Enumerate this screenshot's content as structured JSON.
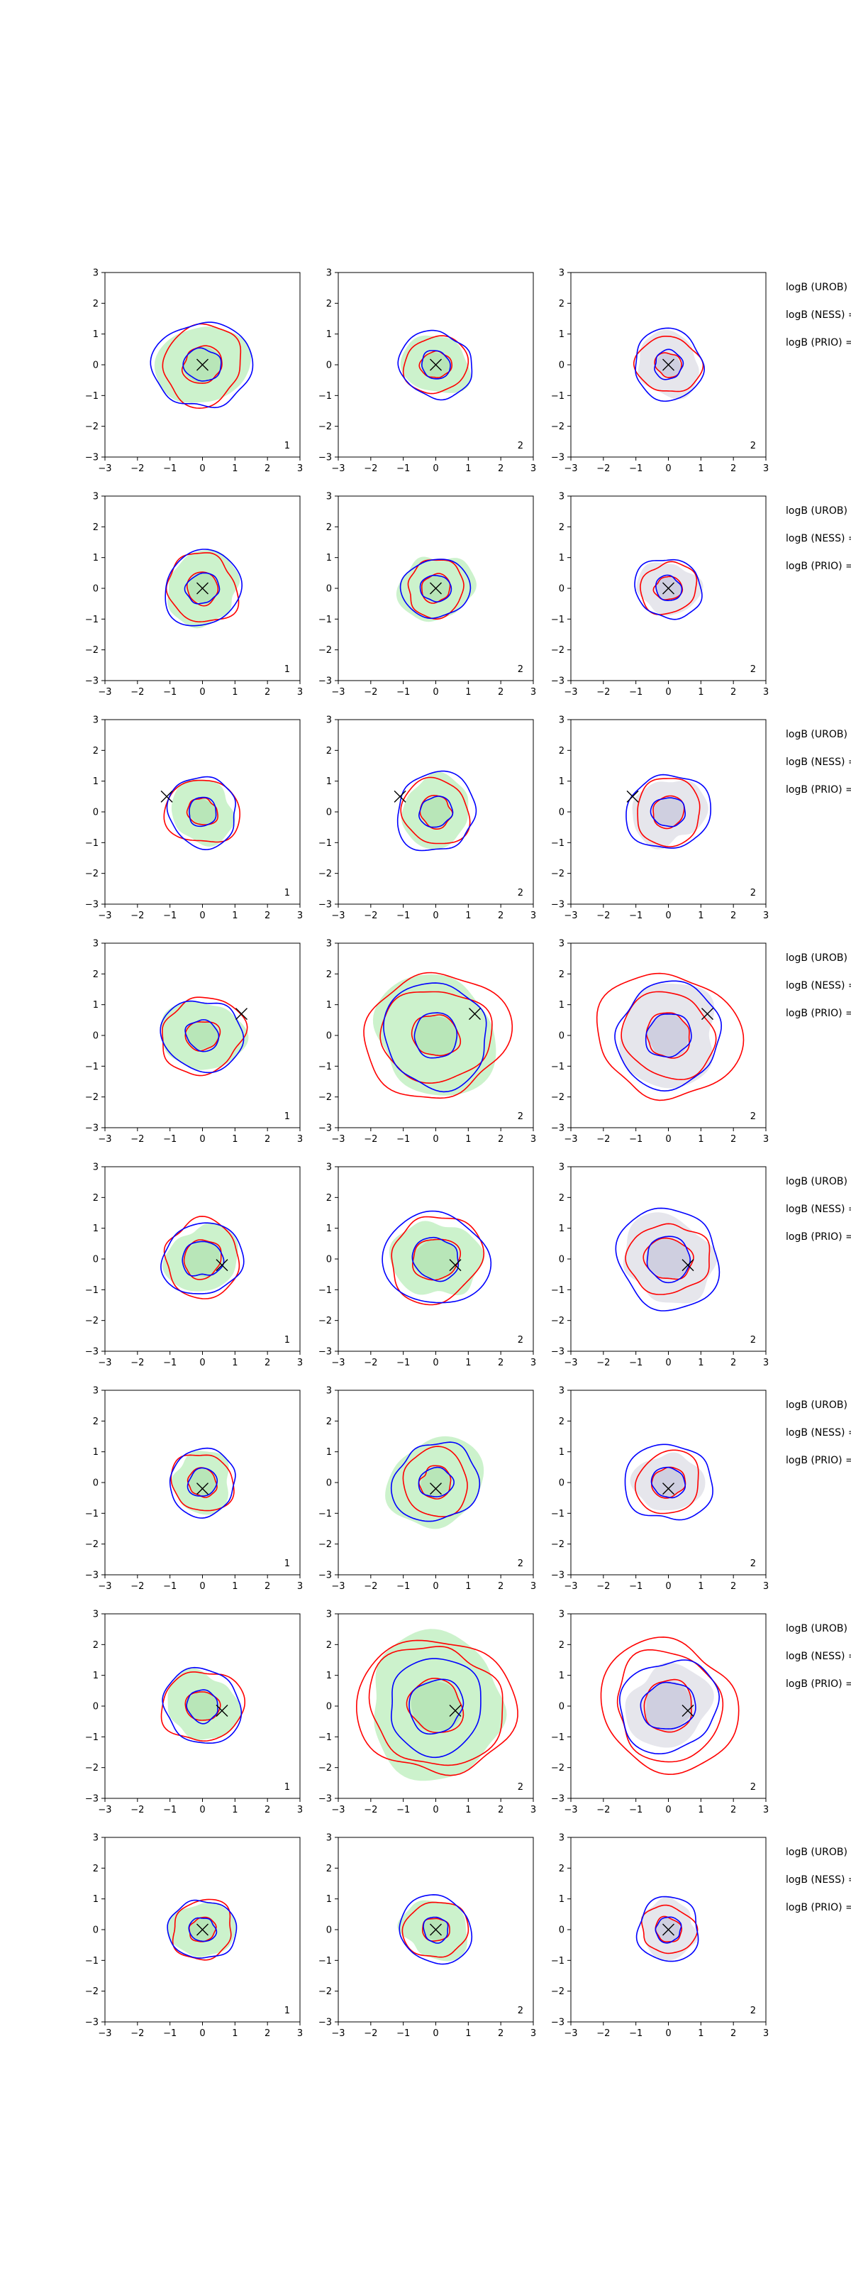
{
  "figure": {
    "axis_range": [
      -3,
      3
    ],
    "tick_labels": [
      "−3",
      "−2",
      "−1",
      "0",
      "1",
      "2",
      "3"
    ],
    "tick_values": [
      -3,
      -2,
      -1,
      0,
      1,
      2,
      3
    ],
    "side_labels": [
      "logB (UROB) =",
      "logB (NESS) =",
      "logB (PRIO) ="
    ],
    "colors": {
      "red": "#ff0000",
      "blue": "#0000ff",
      "green_fill": "#ccf2cc",
      "gray_fill": "#e6e6ec",
      "marker": "#000000"
    }
  },
  "chart_data": [
    {
      "type": "contour",
      "row": 1,
      "col": 1,
      "corner_label": "1",
      "xlim": [
        -3,
        3
      ],
      "ylim": [
        -3,
        3
      ],
      "marker": [
        0,
        0
      ],
      "fill": "green",
      "fill_r": 1.35,
      "red_r": [
        0.6,
        1.25
      ],
      "blue_r": [
        0.55,
        1.45
      ]
    },
    {
      "type": "contour",
      "row": 1,
      "col": 2,
      "corner_label": "2",
      "xlim": [
        -3,
        3
      ],
      "ylim": [
        -3,
        3
      ],
      "marker": [
        0,
        0
      ],
      "fill": "green",
      "fill_r": 1.0,
      "red_r": [
        0.45,
        0.95
      ],
      "blue_r": [
        0.45,
        1.1
      ]
    },
    {
      "type": "contour",
      "row": 1,
      "col": 3,
      "corner_label": "2",
      "xlim": [
        -3,
        3
      ],
      "ylim": [
        -3,
        3
      ],
      "marker": [
        0,
        0
      ],
      "fill": "gray",
      "fill_r": 1.0,
      "red_r": [
        0.4,
        0.95
      ],
      "blue_r": [
        0.45,
        1.1
      ]
    },
    {
      "type": "contour",
      "row": 2,
      "col": 1,
      "corner_label": "1",
      "xlim": [
        -3,
        3
      ],
      "ylim": [
        -3,
        3
      ],
      "marker": [
        0,
        0
      ],
      "fill": "green",
      "fill_r": 1.15,
      "red_r": [
        0.5,
        1.1
      ],
      "blue_r": [
        0.5,
        1.2
      ]
    },
    {
      "type": "contour",
      "row": 2,
      "col": 2,
      "corner_label": "2",
      "xlim": [
        -3,
        3
      ],
      "ylim": [
        -3,
        3
      ],
      "marker": [
        0,
        0
      ],
      "fill": "green",
      "fill_r": 1.1,
      "red_r": [
        0.45,
        0.9
      ],
      "blue_r": [
        0.45,
        1.0
      ]
    },
    {
      "type": "contour",
      "row": 2,
      "col": 3,
      "corner_label": "2",
      "xlim": [
        -3,
        3
      ],
      "ylim": [
        -3,
        3
      ],
      "marker": [
        0,
        0
      ],
      "fill": "gray",
      "fill_r": 0.9,
      "red_r": [
        0.4,
        0.85
      ],
      "blue_r": [
        0.4,
        1.0
      ]
    },
    {
      "type": "contour",
      "row": 3,
      "col": 1,
      "corner_label": "1",
      "xlim": [
        -3,
        3
      ],
      "ylim": [
        -3,
        3
      ],
      "marker": [
        -1.1,
        0.5
      ],
      "fill": "green",
      "fill_r": 1.0,
      "red_r": [
        0.45,
        1.1
      ],
      "blue_r": [
        0.45,
        1.1
      ]
    },
    {
      "type": "contour",
      "row": 3,
      "col": 2,
      "corner_label": "2",
      "xlim": [
        -3,
        3
      ],
      "ylim": [
        -3,
        3
      ],
      "marker": [
        -1.1,
        0.5
      ],
      "fill": "green",
      "fill_r": 1.1,
      "red_r": [
        0.5,
        1.05
      ],
      "blue_r": [
        0.5,
        1.25
      ]
    },
    {
      "type": "contour",
      "row": 3,
      "col": 3,
      "corner_label": "2",
      "xlim": [
        -3,
        3
      ],
      "ylim": [
        -3,
        3
      ],
      "marker": [
        -1.1,
        0.5
      ],
      "fill": "gray",
      "fill_r": 1.1,
      "red_r": [
        0.5,
        1.05
      ],
      "blue_r": [
        0.5,
        1.25
      ]
    },
    {
      "type": "contour",
      "row": 4,
      "col": 1,
      "corner_label": "1",
      "xlim": [
        -3,
        3
      ],
      "ylim": [
        -3,
        3
      ],
      "marker": [
        1.2,
        0.7
      ],
      "fill": "green",
      "fill_r": 1.2,
      "red_r": [
        0.5,
        1.25
      ],
      "blue_r": [
        0.5,
        1.2
      ]
    },
    {
      "type": "contour",
      "row": 4,
      "col": 2,
      "corner_label": "2",
      "xlim": [
        -3,
        3
      ],
      "ylim": [
        -3,
        3
      ],
      "marker": [
        1.2,
        0.7
      ],
      "fill": "green",
      "fill_r": 1.9,
      "red_r": [
        0.7,
        1.6,
        2.1
      ],
      "blue_r": [
        0.7,
        1.65
      ]
    },
    {
      "type": "contour",
      "row": 4,
      "col": 3,
      "corner_label": "2",
      "xlim": [
        -3,
        3
      ],
      "ylim": [
        -3,
        3
      ],
      "marker": [
        1.2,
        0.7
      ],
      "fill": "gray",
      "fill_r": 1.6,
      "red_r": [
        0.7,
        1.4,
        2.1
      ],
      "blue_r": [
        0.7,
        1.65
      ]
    },
    {
      "type": "contour",
      "row": 5,
      "col": 1,
      "corner_label": "1",
      "xlim": [
        -3,
        3
      ],
      "ylim": [
        -3,
        3
      ],
      "marker": [
        0.6,
        -0.2
      ],
      "fill": "green",
      "fill_r": 1.1,
      "red_r": [
        0.6,
        1.2
      ],
      "blue_r": [
        0.6,
        1.2
      ]
    },
    {
      "type": "contour",
      "row": 5,
      "col": 2,
      "corner_label": "2",
      "xlim": [
        -3,
        3
      ],
      "ylim": [
        -3,
        3
      ],
      "marker": [
        0.6,
        -0.2
      ],
      "fill": "green",
      "fill_r": 1.3,
      "red_r": [
        0.7,
        1.4
      ],
      "blue_r": [
        0.7,
        1.55
      ]
    },
    {
      "type": "contour",
      "row": 5,
      "col": 3,
      "corner_label": "2",
      "xlim": [
        -3,
        3
      ],
      "ylim": [
        -3,
        3
      ],
      "marker": [
        0.6,
        -0.2
      ],
      "fill": "gray",
      "fill_r": 1.4,
      "red_r": [
        0.7,
        1.2
      ],
      "blue_r": [
        0.7,
        1.6
      ]
    },
    {
      "type": "contour",
      "row": 6,
      "col": 1,
      "corner_label": "1",
      "xlim": [
        -3,
        3
      ],
      "ylim": [
        -3,
        3
      ],
      "marker": [
        0,
        -0.2
      ],
      "fill": "green",
      "fill_r": 0.95,
      "red_r": [
        0.45,
        0.95
      ],
      "blue_r": [
        0.45,
        1.05
      ]
    },
    {
      "type": "contour",
      "row": 6,
      "col": 2,
      "corner_label": "2",
      "xlim": [
        -3,
        3
      ],
      "ylim": [
        -3,
        3
      ],
      "marker": [
        0,
        -0.2
      ],
      "fill": "green",
      "fill_r": 1.45,
      "red_r": [
        0.5,
        1.05
      ],
      "blue_r": [
        0.5,
        1.3
      ]
    },
    {
      "type": "contour",
      "row": 6,
      "col": 3,
      "corner_label": "2",
      "xlim": [
        -3,
        3
      ],
      "ylim": [
        -3,
        3
      ],
      "marker": [
        0,
        -0.2
      ],
      "fill": "gray",
      "fill_r": 1.0,
      "red_r": [
        0.5,
        1.0
      ],
      "blue_r": [
        0.5,
        1.3
      ]
    },
    {
      "type": "contour",
      "row": 7,
      "col": 1,
      "corner_label": "1",
      "xlim": [
        -3,
        3
      ],
      "ylim": [
        -3,
        3
      ],
      "marker": [
        0.6,
        -0.15
      ],
      "fill": "green",
      "fill_r": 1.1,
      "red_r": [
        0.5,
        1.2
      ],
      "blue_r": [
        0.5,
        1.2
      ]
    },
    {
      "type": "contour",
      "row": 7,
      "col": 2,
      "corner_label": "2",
      "xlim": [
        -3,
        3
      ],
      "ylim": [
        -3,
        3
      ],
      "marker": [
        0.6,
        -0.15
      ],
      "fill": "green",
      "fill_r": 2.2,
      "red_r": [
        0.85,
        2.0,
        2.3
      ],
      "blue_r": [
        0.85,
        1.5
      ]
    },
    {
      "type": "contour",
      "row": 7,
      "col": 3,
      "corner_label": "2",
      "xlim": [
        -3,
        3
      ],
      "ylim": [
        -3,
        3
      ],
      "marker": [
        0.6,
        -0.15
      ],
      "fill": "gray",
      "fill_r": 1.3,
      "red_r": [
        0.8,
        1.7,
        2.1
      ],
      "blue_r": [
        0.8,
        1.5
      ]
    },
    {
      "type": "contour",
      "row": 8,
      "col": 1,
      "corner_label": "1",
      "xlim": [
        -3,
        3
      ],
      "ylim": [
        -3,
        3
      ],
      "marker": [
        0,
        0
      ],
      "fill": "green",
      "fill_r": 0.95,
      "red_r": [
        0.4,
        0.95
      ],
      "blue_r": [
        0.4,
        1.0
      ]
    },
    {
      "type": "contour",
      "row": 8,
      "col": 2,
      "corner_label": "2",
      "xlim": [
        -3,
        3
      ],
      "ylim": [
        -3,
        3
      ],
      "marker": [
        0,
        0
      ],
      "fill": "green",
      "fill_r": 1.0,
      "red_r": [
        0.4,
        0.95
      ],
      "blue_r": [
        0.4,
        1.1
      ]
    },
    {
      "type": "contour",
      "row": 8,
      "col": 3,
      "corner_label": "2",
      "xlim": [
        -3,
        3
      ],
      "ylim": [
        -3,
        3
      ],
      "marker": [
        0,
        0
      ],
      "fill": "gray",
      "fill_r": 0.9,
      "red_r": [
        0.4,
        0.8
      ],
      "blue_r": [
        0.4,
        1.0
      ]
    }
  ]
}
